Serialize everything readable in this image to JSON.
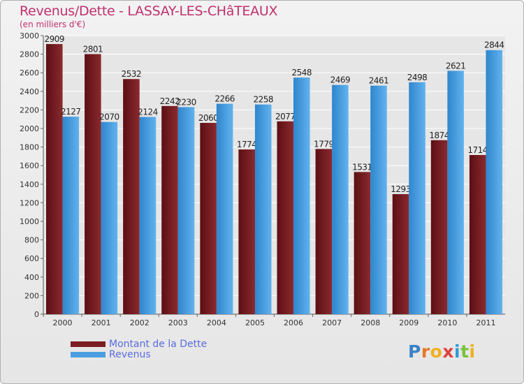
{
  "header": {
    "title": "Revenus/Dette - LASSAY-LES-CHâTEAUX",
    "subtitle": "(en milliers d'€)"
  },
  "legend": {
    "dette_label": "Montant de la Dette",
    "revenus_label": "Revenus"
  },
  "logo": {
    "text": "Proxiti",
    "letters": [
      {
        "ch": "P",
        "color": "#3a82c8"
      },
      {
        "ch": "r",
        "color": "#e87822"
      },
      {
        "ch": "o",
        "color": "#f0b020"
      },
      {
        "ch": "x",
        "color": "#e04040"
      },
      {
        "ch": "i",
        "color": "#2e9ad8"
      },
      {
        "ch": "t",
        "color": "#7ac23a"
      },
      {
        "ch": "i",
        "color": "#f0b020"
      }
    ]
  },
  "colors": {
    "dette": "#7a1e22",
    "revenus": "#4a9ee0",
    "title": "#c0306e",
    "legend_text": "#5b6bde"
  },
  "chart_data": {
    "type": "bar",
    "title": "Revenus/Dette - LASSAY-LES-CHâTEAUX",
    "subtitle": "(en milliers d'€)",
    "categories": [
      "2000",
      "2001",
      "2002",
      "2003",
      "2004",
      "2005",
      "2006",
      "2007",
      "2008",
      "2009",
      "2010",
      "2011"
    ],
    "series": [
      {
        "name": "Montant de la Dette",
        "color": "#7a1e22",
        "values": [
          2909,
          2801,
          2532,
          2242,
          2060,
          1774,
          2077,
          1779,
          1531,
          1293,
          1874,
          1714
        ]
      },
      {
        "name": "Revenus",
        "color": "#4a9ee0",
        "values": [
          2127,
          2070,
          2124,
          2230,
          2266,
          2258,
          2548,
          2469,
          2461,
          2498,
          2621,
          2844
        ]
      }
    ],
    "ylim": [
      0,
      3000
    ],
    "yticks": [
      0,
      200,
      400,
      600,
      800,
      1000,
      1200,
      1400,
      1600,
      1800,
      2000,
      2200,
      2400,
      2600,
      2800,
      3000
    ],
    "grid": true,
    "legend_position": "bottom-left"
  }
}
